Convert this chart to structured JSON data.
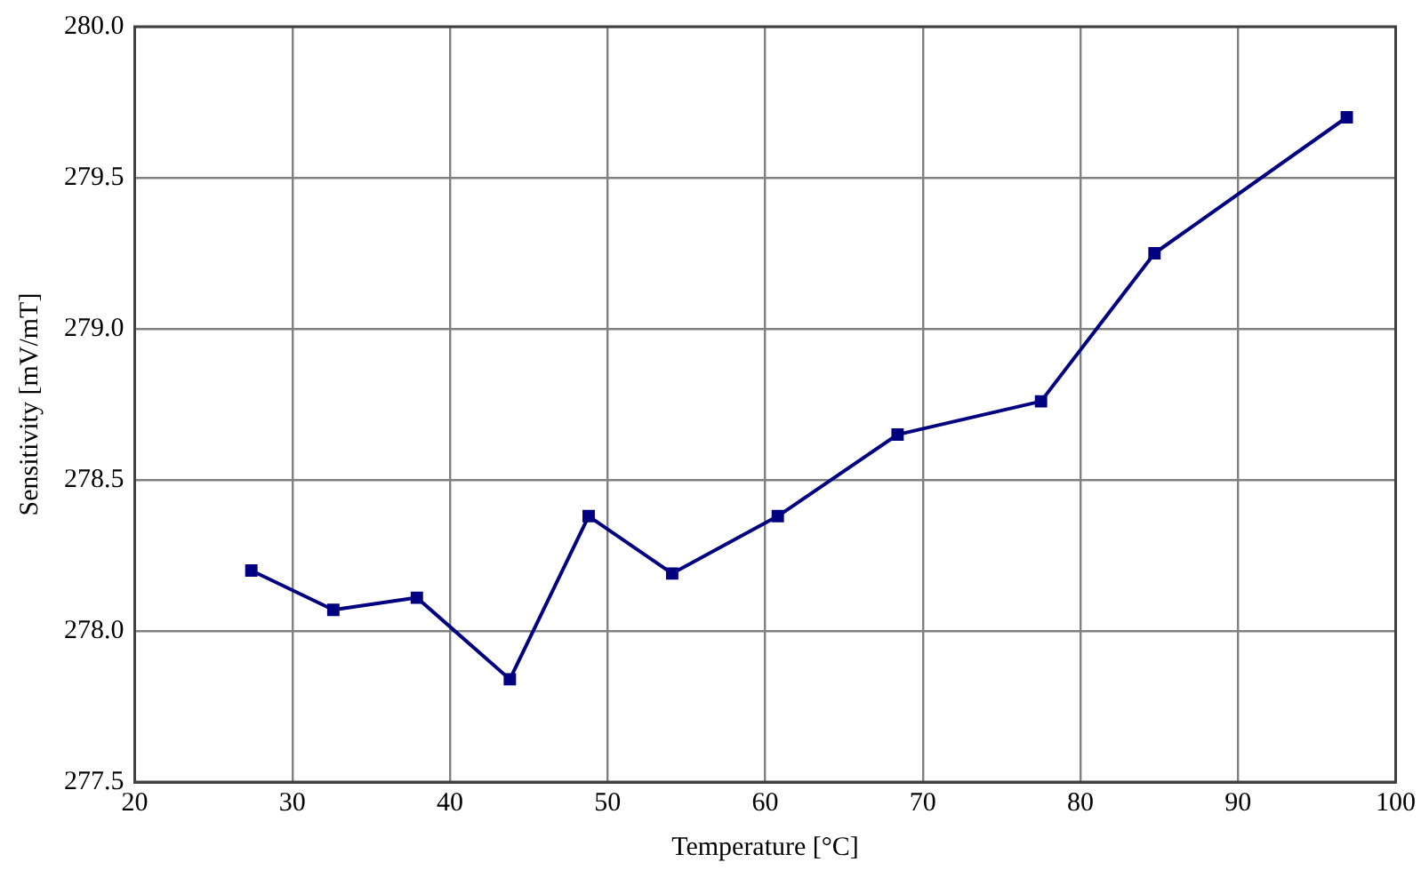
{
  "chart_data": {
    "type": "line",
    "xlabel": "Temperature [°C]",
    "ylabel": "Sensitivity [mV/mT]",
    "x": [
      27.4,
      32.6,
      37.9,
      43.8,
      48.8,
      54.1,
      60.8,
      68.4,
      77.5,
      84.7,
      96.9
    ],
    "series": [
      {
        "color": "#000080",
        "values": [
          278.2,
          278.07,
          278.11,
          277.84,
          278.38,
          278.19,
          278.38,
          278.65,
          278.76,
          279.25,
          279.7
        ]
      }
    ],
    "xlim": [
      20,
      100
    ],
    "xticks": [
      20,
      30,
      40,
      50,
      60,
      70,
      80,
      90,
      100
    ],
    "ylim": [
      277.5,
      280
    ],
    "yticks": [
      {
        "value": 277.5,
        "label": "277.5"
      },
      {
        "value": 278,
        "label": "278.0"
      },
      {
        "value": 278.5,
        "label": "278.5"
      },
      {
        "value": 279,
        "label": "279.0"
      },
      {
        "value": 279.5,
        "label": "279.5"
      },
      {
        "value": 280,
        "label": "280.0"
      }
    ],
    "grid": true,
    "legend": false,
    "marker": "square",
    "line_style": "solid"
  }
}
